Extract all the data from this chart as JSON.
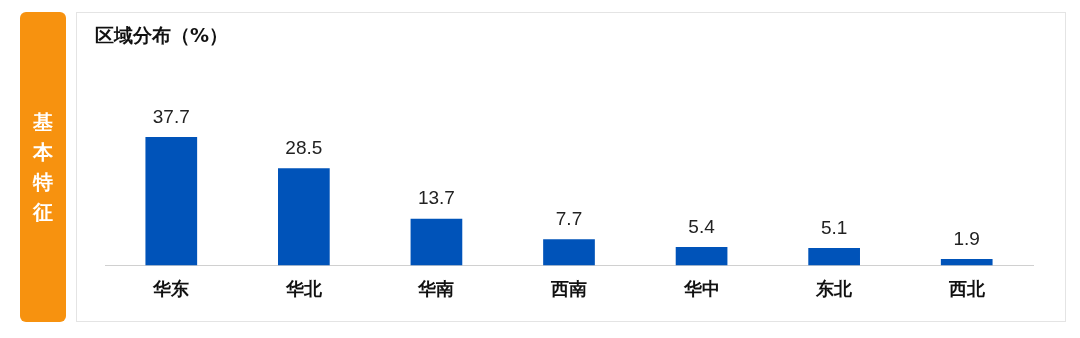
{
  "chart_data": {
    "type": "bar",
    "title": "区域分布（%）",
    "annotations": [
      "基本特征"
    ],
    "categories": [
      "华东",
      "华北",
      "华南",
      "西南",
      "华中",
      "东北",
      "西北"
    ],
    "values": [
      37.7,
      28.5,
      13.7,
      7.7,
      5.4,
      5.1,
      1.9
    ],
    "color": "#0053b9",
    "data_labels": true,
    "grid": false,
    "legend": false
  }
}
